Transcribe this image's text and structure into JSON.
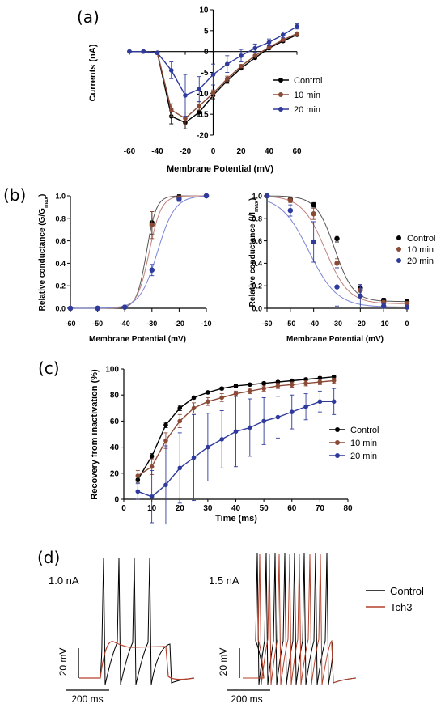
{
  "panel_labels": [
    "(a)",
    "(b)",
    "(c)",
    "(d)"
  ],
  "colors": {
    "control": "#000000",
    "min10": "#8b4a36",
    "min20": "#2e3a9c",
    "tch3": "#b5402a"
  },
  "chart_data": [
    {
      "type": "line",
      "panel": "(a)",
      "xlabel": "Membrane Potential (mV)",
      "ylabel": "Currents (nA)",
      "xlim": [
        -60,
        60
      ],
      "ylim": [
        -20,
        10
      ],
      "xticks": [
        -60,
        -40,
        -20,
        0,
        20,
        40,
        60
      ],
      "xtick_labels": [
        "-60",
        "-40",
        "-20",
        "0",
        "20",
        "40",
        "60"
      ],
      "yticks": [
        -20,
        -15,
        -10,
        -5,
        0,
        5,
        10
      ],
      "ytick_labels": [
        "-20",
        "-15",
        "-10",
        "-5",
        "0",
        "5",
        "10"
      ],
      "legend_position": "right",
      "series": [
        {
          "name": "Control",
          "color": "#000000",
          "x": [
            -60,
            -50,
            -40,
            -30,
            -20,
            -10,
            0,
            10,
            20,
            30,
            40,
            50,
            60
          ],
          "y": [
            0,
            0,
            -0.3,
            -15.5,
            -17,
            -14.5,
            -10.5,
            -7,
            -4,
            -1.5,
            0.8,
            2.5,
            4
          ],
          "err": [
            0,
            0,
            0.3,
            1.8,
            1.5,
            1,
            0.8,
            0.6,
            0.4,
            0.3,
            0.3,
            0.3,
            0.3
          ]
        },
        {
          "name": "10 min",
          "color": "#8b4a36",
          "x": [
            -60,
            -50,
            -40,
            -30,
            -20,
            -10,
            0,
            10,
            20,
            30,
            40,
            50,
            60
          ],
          "y": [
            0,
            0,
            -0.3,
            -14,
            -16,
            -13,
            -10,
            -6.5,
            -3.5,
            -1,
            1,
            2.8,
            4.3
          ],
          "err": [
            0,
            0,
            0.3,
            1.5,
            1.5,
            1,
            0.8,
            0.6,
            0.4,
            0.3,
            0.3,
            0.3,
            0.3
          ]
        },
        {
          "name": "20 min",
          "color": "#2e3a9c",
          "x": [
            -60,
            -50,
            -40,
            -30,
            -20,
            -10,
            0,
            10,
            20,
            30,
            40,
            50,
            60
          ],
          "y": [
            0,
            0,
            -0.3,
            -4.5,
            -10.5,
            -9,
            -5.5,
            -3,
            -1,
            0.8,
            2.2,
            4,
            6
          ],
          "err": [
            0,
            0,
            0.3,
            2,
            5,
            3,
            2.5,
            2,
            1.5,
            1,
            0.8,
            0.7,
            0.6
          ]
        }
      ]
    },
    {
      "type": "scatter",
      "panel": "(b) left",
      "xlabel": "Membrane Potential (mV)",
      "ylabel": "Relative conductance (G/G",
      "ylabel_sub": "max",
      "ylabel_end": ")",
      "xlim": [
        -60,
        -10
      ],
      "ylim": [
        0,
        1.0
      ],
      "xticks": [
        -60,
        -50,
        -40,
        -30,
        -20,
        -10
      ],
      "xtick_labels": [
        "-60",
        "-50",
        "-40",
        "-30",
        "-20",
        "-10"
      ],
      "yticks": [
        0,
        0.2,
        0.4,
        0.6,
        0.8,
        1.0
      ],
      "ytick_labels": [
        "0.0",
        "0.2",
        "0.4",
        "0.6",
        "0.8",
        "1.0"
      ],
      "series": [
        {
          "name": "Control",
          "color": "#000000",
          "x": [
            -60,
            -50,
            -40,
            -30,
            -20,
            -10
          ],
          "y": [
            0,
            0,
            0.01,
            0.76,
            0.99,
            1.0
          ],
          "err": [
            0,
            0,
            0,
            0.1,
            0.02,
            0
          ],
          "fit": {
            "vhalf": -32,
            "k": 1.8
          }
        },
        {
          "name": "10 min",
          "color": "#8b4a36",
          "x": [
            -60,
            -50,
            -40,
            -30,
            -20,
            -10
          ],
          "y": [
            0,
            0,
            0.01,
            0.74,
            0.98,
            1.0
          ],
          "err": [
            0,
            0,
            0,
            0.12,
            0.02,
            0
          ],
          "fit": {
            "vhalf": -31,
            "k": 2.2
          }
        },
        {
          "name": "20 min",
          "color": "#2e3a9c",
          "x": [
            -60,
            -50,
            -40,
            -30,
            -20,
            -10
          ],
          "y": [
            0,
            0,
            0.01,
            0.34,
            0.97,
            1.0
          ],
          "err": [
            0,
            0,
            0,
            0.05,
            0.02,
            0
          ],
          "fit": {
            "vhalf": -28,
            "k": 3.2
          }
        }
      ]
    },
    {
      "type": "scatter",
      "panel": "(b) right",
      "xlabel": "Membrane Potential (mV)",
      "ylabel": "Relative conductance (I/I",
      "ylabel_sub": "max",
      "ylabel_end": ")",
      "xlim": [
        -60,
        0
      ],
      "ylim": [
        0,
        1.0
      ],
      "xticks": [
        -60,
        -50,
        -40,
        -30,
        -20,
        -10,
        0
      ],
      "xtick_labels": [
        "-60",
        "-50",
        "-40",
        "-30",
        "-20",
        "-10",
        "0"
      ],
      "yticks": [
        0,
        0.2,
        0.4,
        0.6,
        0.8,
        1.0
      ],
      "ytick_labels": [
        "0.0",
        "0.2",
        "0.4",
        "0.6",
        "0.8",
        "1.0"
      ],
      "legend_position": "top-right",
      "series": [
        {
          "name": "Control",
          "color": "#000000",
          "x": [
            -60,
            -50,
            -40,
            -30,
            -20,
            -10,
            0
          ],
          "y": [
            1.0,
            0.97,
            0.92,
            0.62,
            0.18,
            0.07,
            0.06
          ],
          "err": [
            0,
            0.02,
            0.02,
            0.03,
            0.03,
            0.02,
            0.02
          ],
          "fit": {
            "vhalf": -31,
            "k": 4,
            "base": 0.06
          }
        },
        {
          "name": "10 min",
          "color": "#8b4a36",
          "x": [
            -60,
            -50,
            -40,
            -30,
            -20,
            -10,
            0
          ],
          "y": [
            1.0,
            0.96,
            0.84,
            0.4,
            0.16,
            0.05,
            0.04
          ],
          "err": [
            0,
            0.02,
            0.05,
            0.04,
            0.05,
            0.02,
            0.02
          ],
          "fit": {
            "vhalf": -35,
            "k": 5,
            "base": 0.04
          }
        },
        {
          "name": "20 min",
          "color": "#2e3a9c",
          "x": [
            -60,
            -50,
            -40,
            -30,
            -20,
            -10,
            0
          ],
          "y": [
            1.0,
            0.87,
            0.59,
            0.19,
            0.11,
            0.02,
            0.01
          ],
          "err": [
            0,
            0.05,
            0.18,
            0.17,
            0.1,
            0.02,
            0.01
          ],
          "fit": {
            "vhalf": -42,
            "k": 6,
            "base": 0.01
          }
        }
      ]
    },
    {
      "type": "line",
      "panel": "(c)",
      "xlabel": "Time (ms)",
      "ylabel": "Recovery from inactivation (%)",
      "xlim": [
        0,
        80
      ],
      "ylim": [
        0,
        100
      ],
      "xticks": [
        0,
        10,
        20,
        30,
        40,
        50,
        60,
        70,
        80
      ],
      "xtick_labels": [
        "0",
        "10",
        "20",
        "30",
        "40",
        "50",
        "60",
        "70",
        "80"
      ],
      "yticks": [
        0,
        20,
        40,
        60,
        80,
        100
      ],
      "ytick_labels": [
        "0",
        "20",
        "40",
        "60",
        "80",
        "100"
      ],
      "legend_position": "right",
      "series": [
        {
          "name": "Control",
          "color": "#000000",
          "x": [
            5,
            10,
            15,
            20,
            25,
            30,
            35,
            40,
            45,
            50,
            55,
            60,
            65,
            70,
            75
          ],
          "y": [
            15,
            33,
            57,
            70,
            78,
            82,
            85,
            87,
            88,
            89,
            90,
            91,
            92,
            93,
            94
          ],
          "err": [
            2,
            2,
            2,
            2,
            1,
            1,
            1,
            1,
            1,
            1,
            1,
            1,
            1,
            1,
            1
          ]
        },
        {
          "name": "10 min",
          "color": "#8b4a36",
          "x": [
            5,
            10,
            15,
            20,
            25,
            30,
            35,
            40,
            45,
            50,
            55,
            60,
            65,
            70,
            75
          ],
          "y": [
            18,
            25,
            45,
            60,
            70,
            75,
            78,
            81,
            83,
            85,
            87,
            88,
            89,
            90,
            91
          ],
          "err": [
            4,
            6,
            6,
            5,
            4,
            3,
            3,
            2,
            2,
            2,
            2,
            2,
            2,
            2,
            2
          ]
        },
        {
          "name": "20 min",
          "color": "#2e3a9c",
          "x": [
            5,
            10,
            15,
            20,
            25,
            30,
            35,
            40,
            45,
            50,
            55,
            60,
            65,
            70,
            75
          ],
          "y": [
            6,
            2,
            11,
            24,
            32,
            40,
            46,
            52,
            55,
            60,
            63,
            67,
            71,
            75,
            75
          ],
          "err": [
            6,
            20,
            30,
            27,
            33,
            26,
            22,
            27,
            22,
            18,
            16,
            13,
            10,
            8,
            10
          ]
        }
      ]
    }
  ],
  "traces": {
    "left_label": "1.0 nA",
    "right_label": "1.5 nA",
    "scale_v": "20 mV",
    "scale_t": "200 ms",
    "legend": [
      {
        "name": "Control",
        "color": "#000000"
      },
      {
        "name": "Tch3",
        "color": "#b5402a"
      }
    ]
  }
}
